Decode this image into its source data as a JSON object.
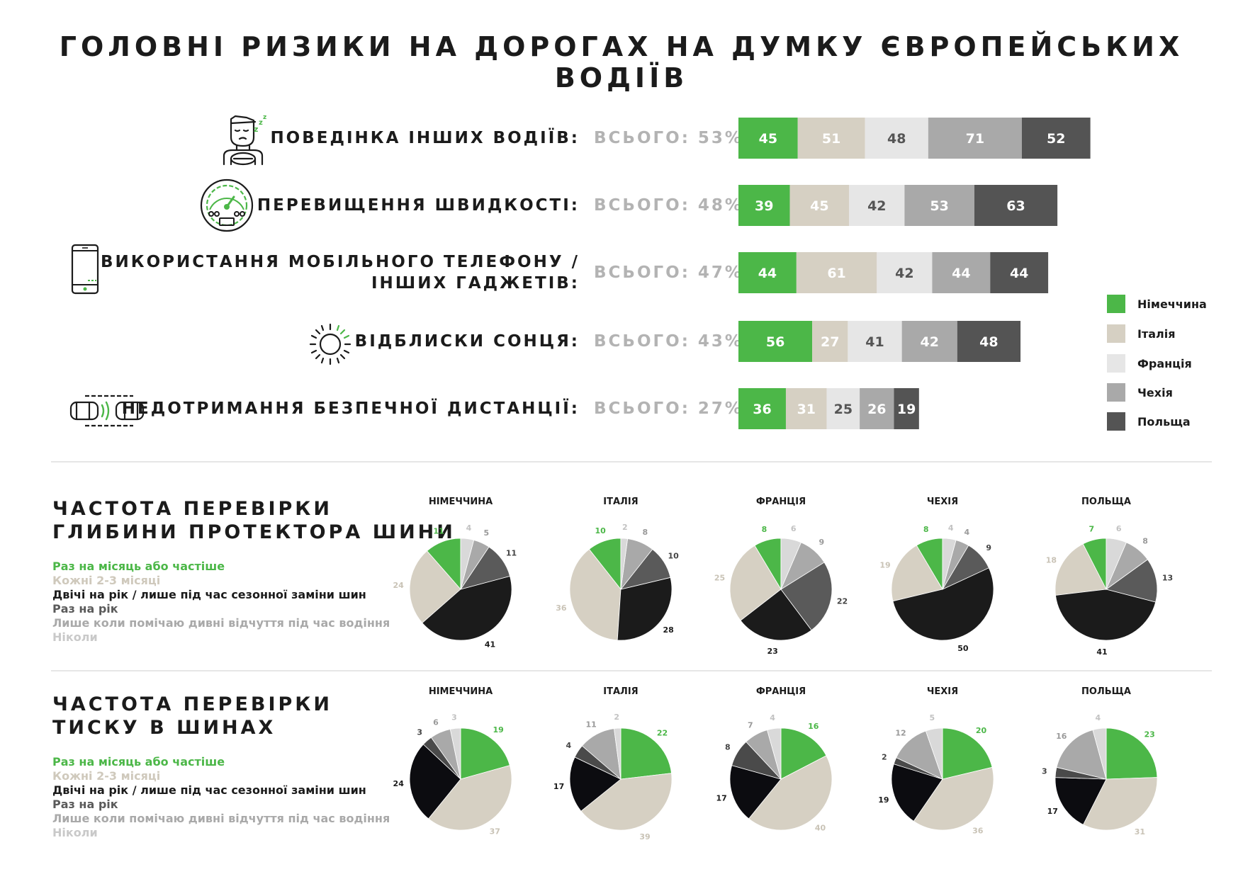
{
  "title": "ГОЛОВНІ РИЗИКИ НА ДОРОГАХ НА ДУМКУ ЄВРОПЕЙСЬКИХ ВОДІЇВ",
  "colors": {
    "germany": "#4cb748",
    "italy": "#d6d0c3",
    "france": "#e6e6e6",
    "czech": "#a9a9a9",
    "poland": "#545454"
  },
  "legend": [
    {
      "label": "Німеччина",
      "color": "#4cb748"
    },
    {
      "label": "Італія",
      "color": "#d6d0c3"
    },
    {
      "label": "Франція",
      "color": "#e6e6e6"
    },
    {
      "label": "Чехія",
      "color": "#a9a9a9"
    },
    {
      "label": "Польща",
      "color": "#545454"
    }
  ],
  "chart_data": [
    {
      "type": "bar",
      "stacked": true,
      "orientation": "horizontal",
      "categories": [
        "ПОВЕДІНКА ІНШИХ ВОДІЇВ:",
        "ПЕРЕВИЩЕННЯ ШВИДКОСТІ:",
        "ВИКОРИСТАННЯ МОБІЛЬНОГО ТЕЛЕФОНУ / ІНШИХ ГАДЖЕТІВ:",
        "ВІДБЛИСКИ СОНЦЯ:",
        "НЕДОТРИМАННЯ БЕЗПЕЧНОЇ ДИСТАНЦІЇ:"
      ],
      "category_lines": [
        [
          "ПОВЕДІНКА ІНШИХ ВОДІЇВ:"
        ],
        [
          "ПЕРЕВИЩЕННЯ ШВИДКОСТІ:"
        ],
        [
          "ВИКОРИСТАННЯ МОБІЛЬНОГО ТЕЛЕФОНУ /",
          "ІНШИХ ГАДЖЕТІВ:"
        ],
        [
          "ВІДБЛИСКИ СОНЦЯ:"
        ],
        [
          "НЕДОТРИМАННЯ БЕЗПЕЧНОЇ ДИСТАНЦІЇ:"
        ]
      ],
      "totals": [
        "ВСЬОГО: 53%",
        "ВСЬОГО: 48%",
        "ВСЬОГО: 47%",
        "ВСЬОГО: 43%",
        "ВСЬОГО: 27%"
      ],
      "series": [
        {
          "name": "Німеччина",
          "color": "#4cb748",
          "values": [
            45,
            39,
            44,
            56,
            36
          ]
        },
        {
          "name": "Італія",
          "color": "#d6d0c3",
          "values": [
            51,
            45,
            61,
            27,
            31
          ]
        },
        {
          "name": "Франція",
          "color": "#e6e6e6",
          "values": [
            48,
            42,
            42,
            41,
            25
          ]
        },
        {
          "name": "Чехія",
          "color": "#a9a9a9",
          "values": [
            71,
            53,
            44,
            42,
            26
          ]
        },
        {
          "name": "Польща",
          "color": "#545454",
          "values": [
            52,
            63,
            44,
            48,
            19
          ]
        }
      ],
      "legend_position": "right"
    },
    {
      "type": "pie",
      "title": "ЧАСТОТА ПЕРЕВІРКИ ГЛИБИНИ ПРОТЕКТОРА ШИНИ",
      "title_lines": [
        "ЧАСТОТА ПЕРЕВІРКИ",
        "ГЛИБИНИ ПРОТЕКТОРА ШИНИ"
      ],
      "categories": [
        "Раз на місяць або частіше",
        "Кожні 2-3 місяці",
        "Двічі на рік / лише під час сезонної заміни шин",
        "Раз на рік",
        "Лише коли помічаю дивні відчуття під час водіння",
        "Ніколи"
      ],
      "category_colors": [
        "#4cb748",
        "#d6d0c3",
        "#1b1b1b",
        "#5a5a5a",
        "#a9a9a9",
        "#d9d9d9"
      ],
      "label_colors": [
        "#4cb748",
        "#c9c3b6",
        "#1b1b1b",
        "#444444",
        "#9a9a9a",
        "#c2c2c2"
      ],
      "pies": [
        {
          "name": "НІМЕЧЧИНА",
          "values": [
            11,
            24,
            41,
            11,
            5,
            4
          ]
        },
        {
          "name": "ІТАЛІЯ",
          "values": [
            10,
            36,
            28,
            10,
            8,
            2
          ]
        },
        {
          "name": "ФРАНЦІЯ",
          "values": [
            8,
            25,
            23,
            22,
            9,
            6
          ]
        },
        {
          "name": "ЧЕХІЯ",
          "values": [
            8,
            19,
            50,
            9,
            4,
            4
          ]
        },
        {
          "name": "ПОЛЬЩА",
          "values": [
            7,
            18,
            41,
            13,
            8,
            6
          ]
        }
      ]
    },
    {
      "type": "pie",
      "title": "ЧАСТОТА ПЕРЕВІРКИ ТИСКУ В ШИНАХ",
      "title_lines": [
        "ЧАСТОТА ПЕРЕВІРКИ",
        "ТИСКУ В ШИНАХ"
      ],
      "categories": [
        "Раз на місяць або частіше",
        "Кожні 2-3 місяці",
        "Двічі на рік / лише під час сезонної заміни шин",
        "Раз на рік",
        "Лише коли помічаю дивні відчуття під час водіння",
        "Ніколи"
      ],
      "category_colors": [
        "#4cb748",
        "#d6d0c3",
        "#0c0c10",
        "#4a4a4a",
        "#a9a9a9",
        "#d9d9d9"
      ],
      "label_colors": [
        "#4cb748",
        "#c9c3b6",
        "#1b1b1b",
        "#444444",
        "#9a9a9a",
        "#c2c2c2"
      ],
      "pies": [
        {
          "name": "НІМЕЧЧИНА",
          "values": [
            19,
            37,
            24,
            3,
            6,
            3
          ]
        },
        {
          "name": "ІТАЛІЯ",
          "values": [
            22,
            39,
            17,
            4,
            11,
            2
          ]
        },
        {
          "name": "ФРАНЦІЯ",
          "values": [
            16,
            40,
            17,
            8,
            7,
            4
          ]
        },
        {
          "name": "ЧЕХІЯ",
          "values": [
            20,
            36,
            19,
            2,
            12,
            5
          ]
        },
        {
          "name": "ПОЛЬЩА",
          "values": [
            23,
            31,
            17,
            3,
            16,
            4
          ]
        }
      ]
    }
  ],
  "icons": [
    "sleepy-driver-icon",
    "speedometer-icon",
    "mobile-phone-icon",
    "sun-icon",
    "cars-distance-icon"
  ]
}
